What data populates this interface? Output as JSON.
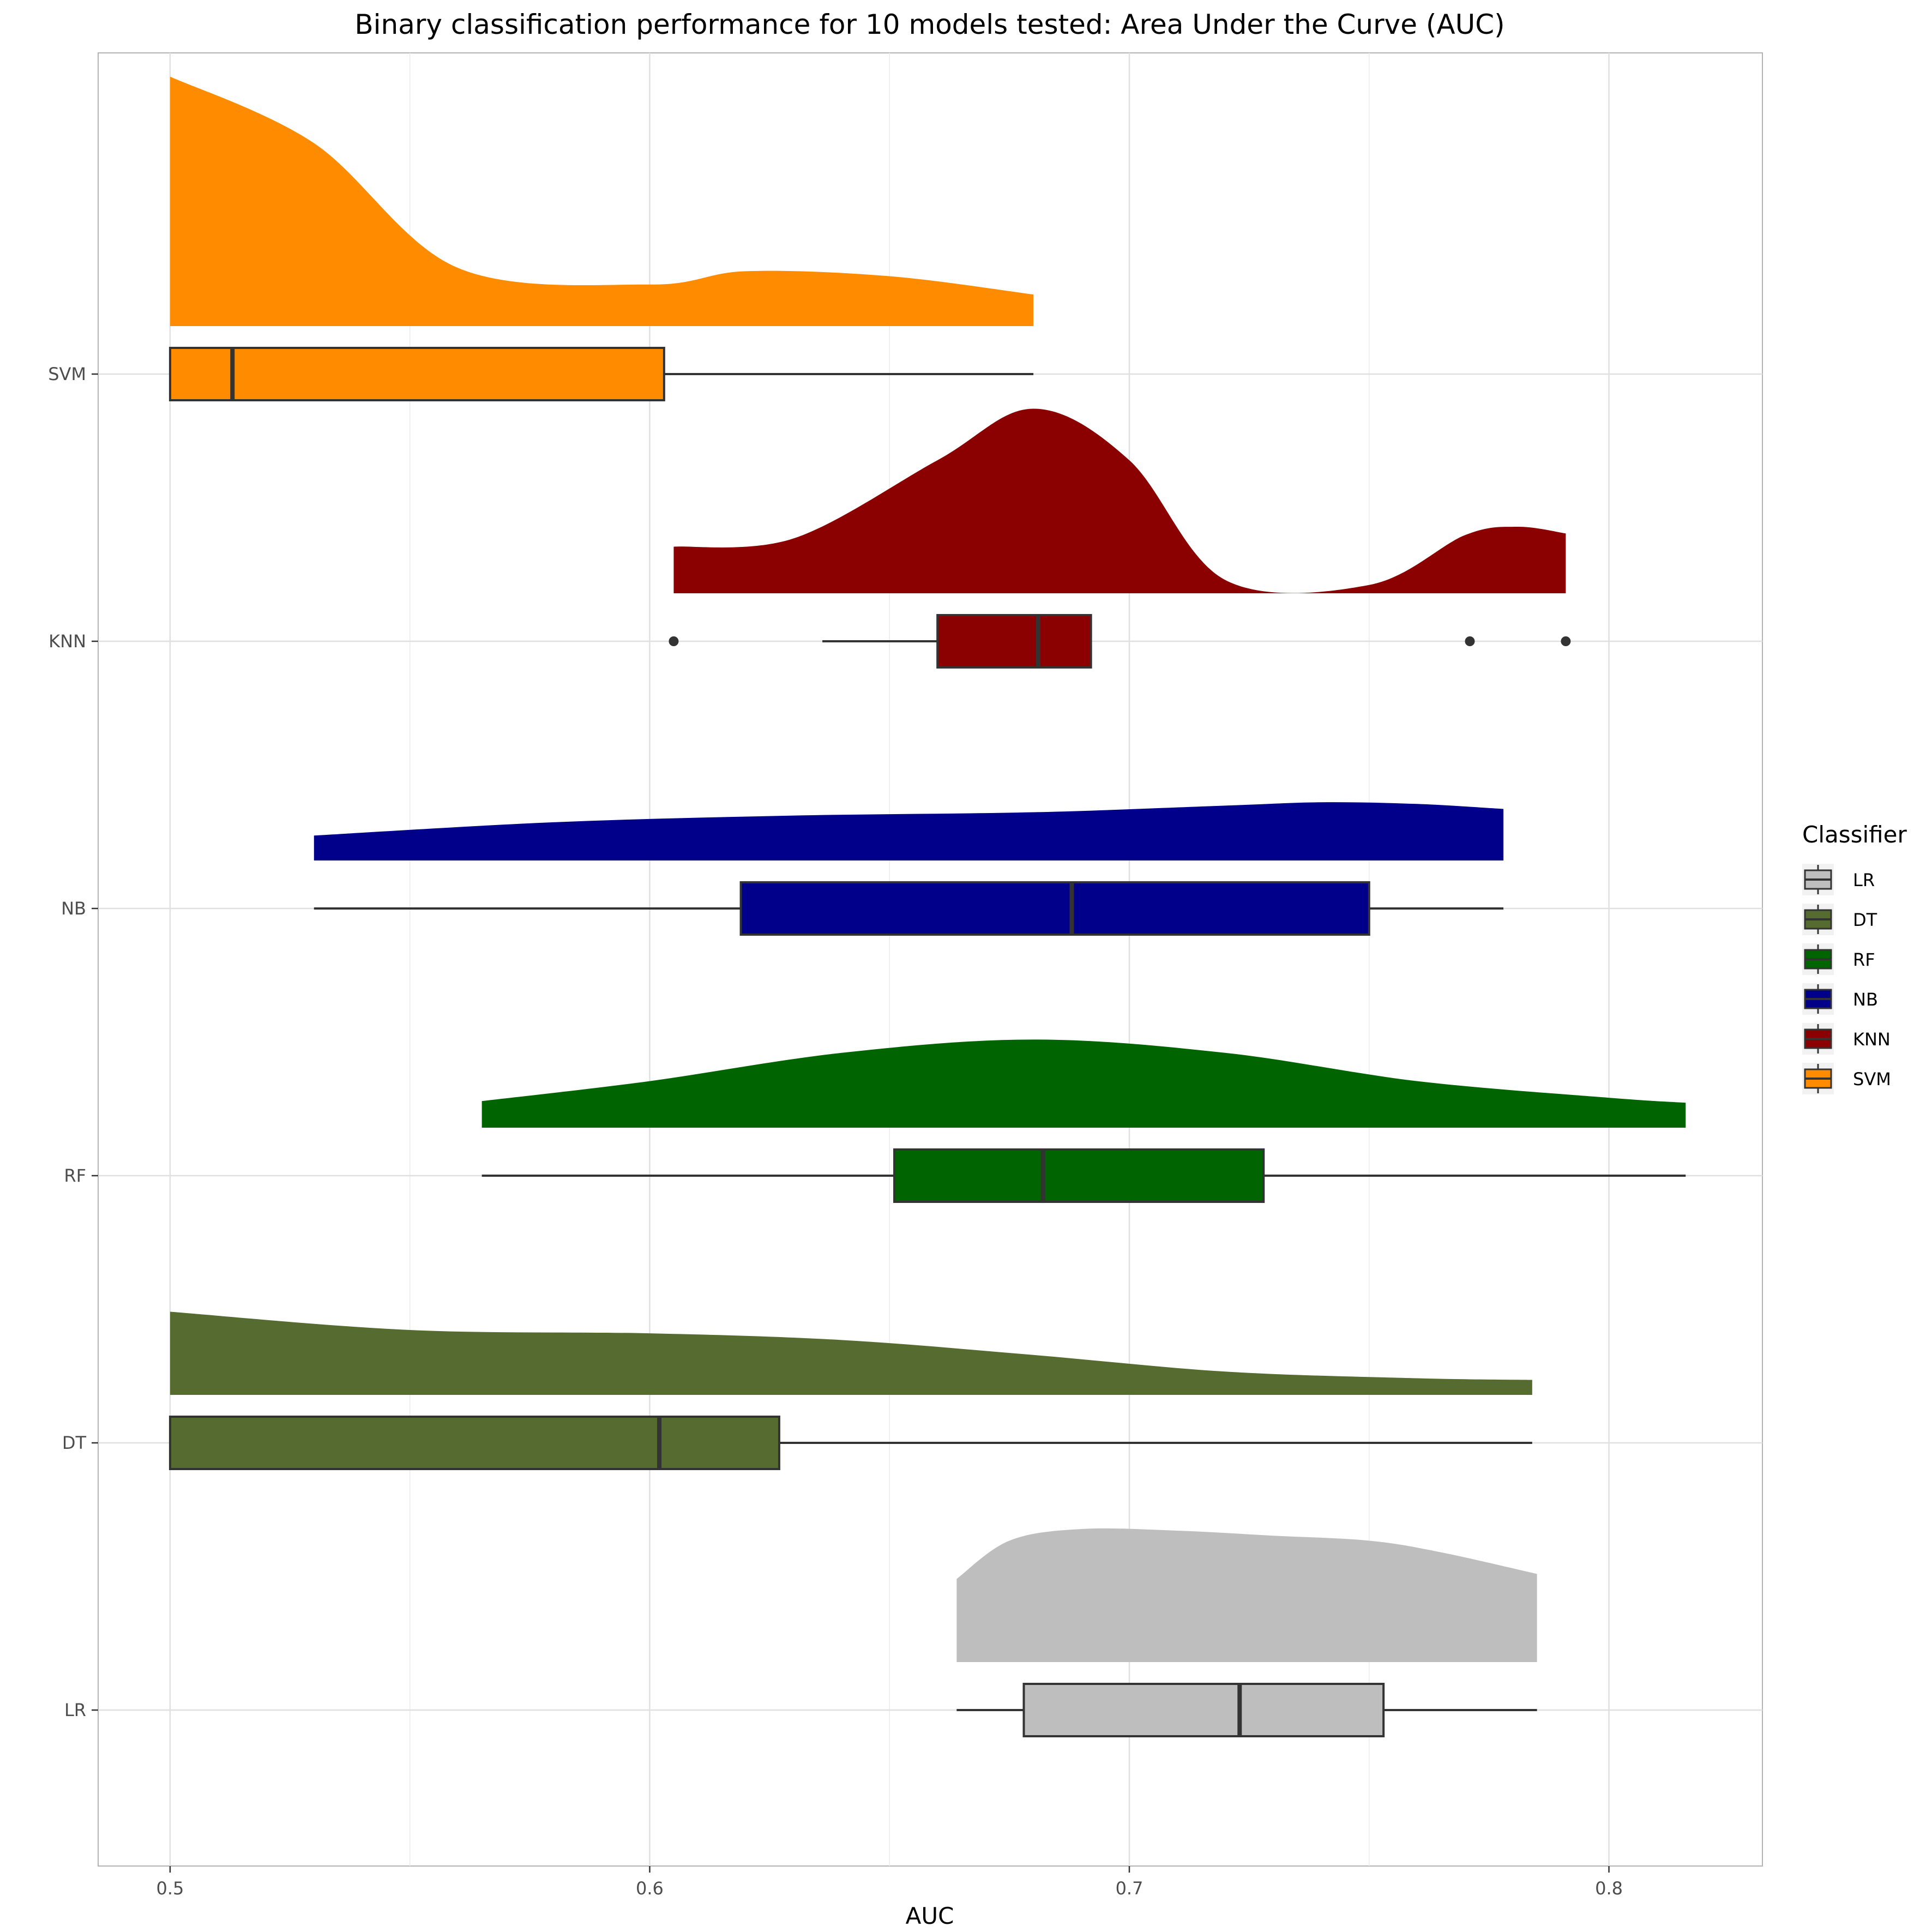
{
  "chart_data": {
    "type": "raincloud",
    "title": "Binary classification performance for 10 models tested: Area Under the Curve (AUC)",
    "xlabel": "AUC",
    "ylabel": "",
    "xlim": [
      0.485,
      0.832
    ],
    "x_ticks": [
      0.5,
      0.6,
      0.7,
      0.8
    ],
    "x_tick_labels": [
      "0.5",
      "0.6",
      "0.7",
      "0.8"
    ],
    "grid": true,
    "legend": {
      "title": "Classifier",
      "position": "right",
      "entries": [
        "LR",
        "DT",
        "RF",
        "NB",
        "KNN",
        "SVM"
      ]
    },
    "series": [
      {
        "name": "LR",
        "color": "#bebebe",
        "box": {
          "min": 0.664,
          "q1": 0.678,
          "median": 0.723,
          "q3": 0.753,
          "max": 0.785
        },
        "outliers": [],
        "density": [
          [
            0.664,
            0.5
          ],
          [
            0.675,
            0.73
          ],
          [
            0.69,
            0.8
          ],
          [
            0.71,
            0.79
          ],
          [
            0.73,
            0.76
          ],
          [
            0.75,
            0.73
          ],
          [
            0.765,
            0.66
          ],
          [
            0.785,
            0.53
          ]
        ]
      },
      {
        "name": "DT",
        "color": "#556b2f",
        "box": {
          "min": 0.5,
          "q1": 0.5,
          "median": 0.602,
          "q3": 0.627,
          "max": 0.784
        },
        "outliers": [],
        "density": [
          [
            0.5,
            0.5
          ],
          [
            0.55,
            0.39
          ],
          [
            0.6,
            0.37
          ],
          [
            0.64,
            0.33
          ],
          [
            0.68,
            0.24
          ],
          [
            0.72,
            0.14
          ],
          [
            0.76,
            0.1
          ],
          [
            0.784,
            0.09
          ]
        ]
      },
      {
        "name": "RF",
        "color": "#006400",
        "box": {
          "min": 0.565,
          "q1": 0.651,
          "median": 0.682,
          "q3": 0.728,
          "max": 0.816
        },
        "outliers": [],
        "density": [
          [
            0.565,
            0.16
          ],
          [
            0.6,
            0.28
          ],
          [
            0.64,
            0.45
          ],
          [
            0.68,
            0.53
          ],
          [
            0.72,
            0.45
          ],
          [
            0.76,
            0.28
          ],
          [
            0.8,
            0.18
          ],
          [
            0.816,
            0.15
          ]
        ]
      },
      {
        "name": "NB",
        "color": "#00008b",
        "box": {
          "min": 0.53,
          "q1": 0.619,
          "median": 0.688,
          "q3": 0.75,
          "max": 0.778
        },
        "outliers": [],
        "density": [
          [
            0.53,
            0.15
          ],
          [
            0.58,
            0.23
          ],
          [
            0.63,
            0.27
          ],
          [
            0.68,
            0.29
          ],
          [
            0.72,
            0.33
          ],
          [
            0.74,
            0.35
          ],
          [
            0.76,
            0.34
          ],
          [
            0.778,
            0.31
          ]
        ]
      },
      {
        "name": "KNN",
        "color": "#8b0000",
        "box": {
          "min": 0.636,
          "q1": 0.66,
          "median": 0.681,
          "q3": 0.692,
          "max": 0.692
        },
        "outliers": [
          0.605,
          0.771,
          0.791
        ],
        "density": [
          [
            0.605,
            0.28
          ],
          [
            0.63,
            0.33
          ],
          [
            0.66,
            0.8
          ],
          [
            0.68,
            1.11
          ],
          [
            0.7,
            0.8
          ],
          [
            0.72,
            0.08
          ],
          [
            0.75,
            0.05
          ],
          [
            0.77,
            0.35
          ],
          [
            0.781,
            0.4
          ],
          [
            0.791,
            0.36
          ]
        ]
      },
      {
        "name": "SVM",
        "color": "#ff8c00",
        "box": {
          "min": 0.5,
          "q1": 0.5,
          "median": 0.513,
          "q3": 0.603,
          "max": 0.68
        },
        "outliers": [],
        "density": [
          [
            0.5,
            1.5
          ],
          [
            0.53,
            1.1
          ],
          [
            0.56,
            0.35
          ],
          [
            0.6,
            0.25
          ],
          [
            0.62,
            0.33
          ],
          [
            0.65,
            0.3
          ],
          [
            0.68,
            0.19
          ]
        ]
      }
    ]
  }
}
